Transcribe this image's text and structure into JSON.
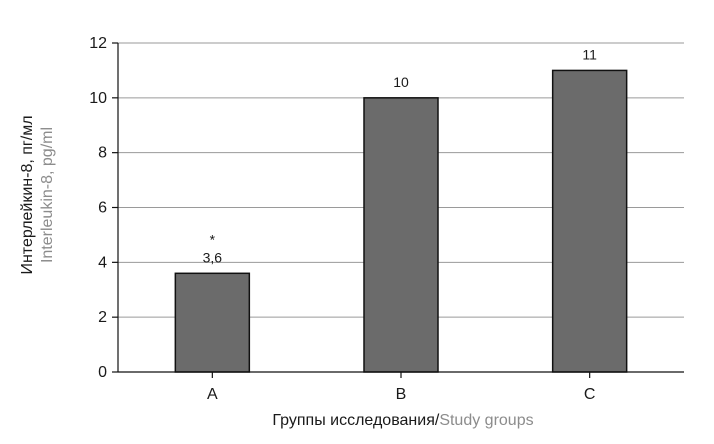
{
  "chart_data": {
    "type": "bar",
    "categories": [
      "A",
      "B",
      "C"
    ],
    "values": [
      3.6,
      10,
      11
    ],
    "value_labels": [
      "3,6",
      "10",
      "11"
    ],
    "annotations": [
      {
        "category": "A",
        "text": "*"
      }
    ],
    "ylim": [
      0,
      12
    ],
    "yticks": [
      0,
      2,
      4,
      6,
      8,
      10,
      12
    ],
    "ytick_labels": [
      "0",
      "2",
      "4",
      "6",
      "8",
      "10",
      "12"
    ],
    "ylabel_ru": "Интерлейкин-8, пг/мл",
    "ylabel_en": "Interleukin-8, pg/ml",
    "xlabel_ru": "Группы исследования/",
    "xlabel_en": "Study groups",
    "grid": true,
    "colors": {
      "bar": "#6b6b6b",
      "bar_edge": "#111111",
      "grid": "#9a9a9a",
      "axis": "#111111",
      "label_primary": "#1a1a1a",
      "label_secondary": "#8c8c8c"
    }
  }
}
